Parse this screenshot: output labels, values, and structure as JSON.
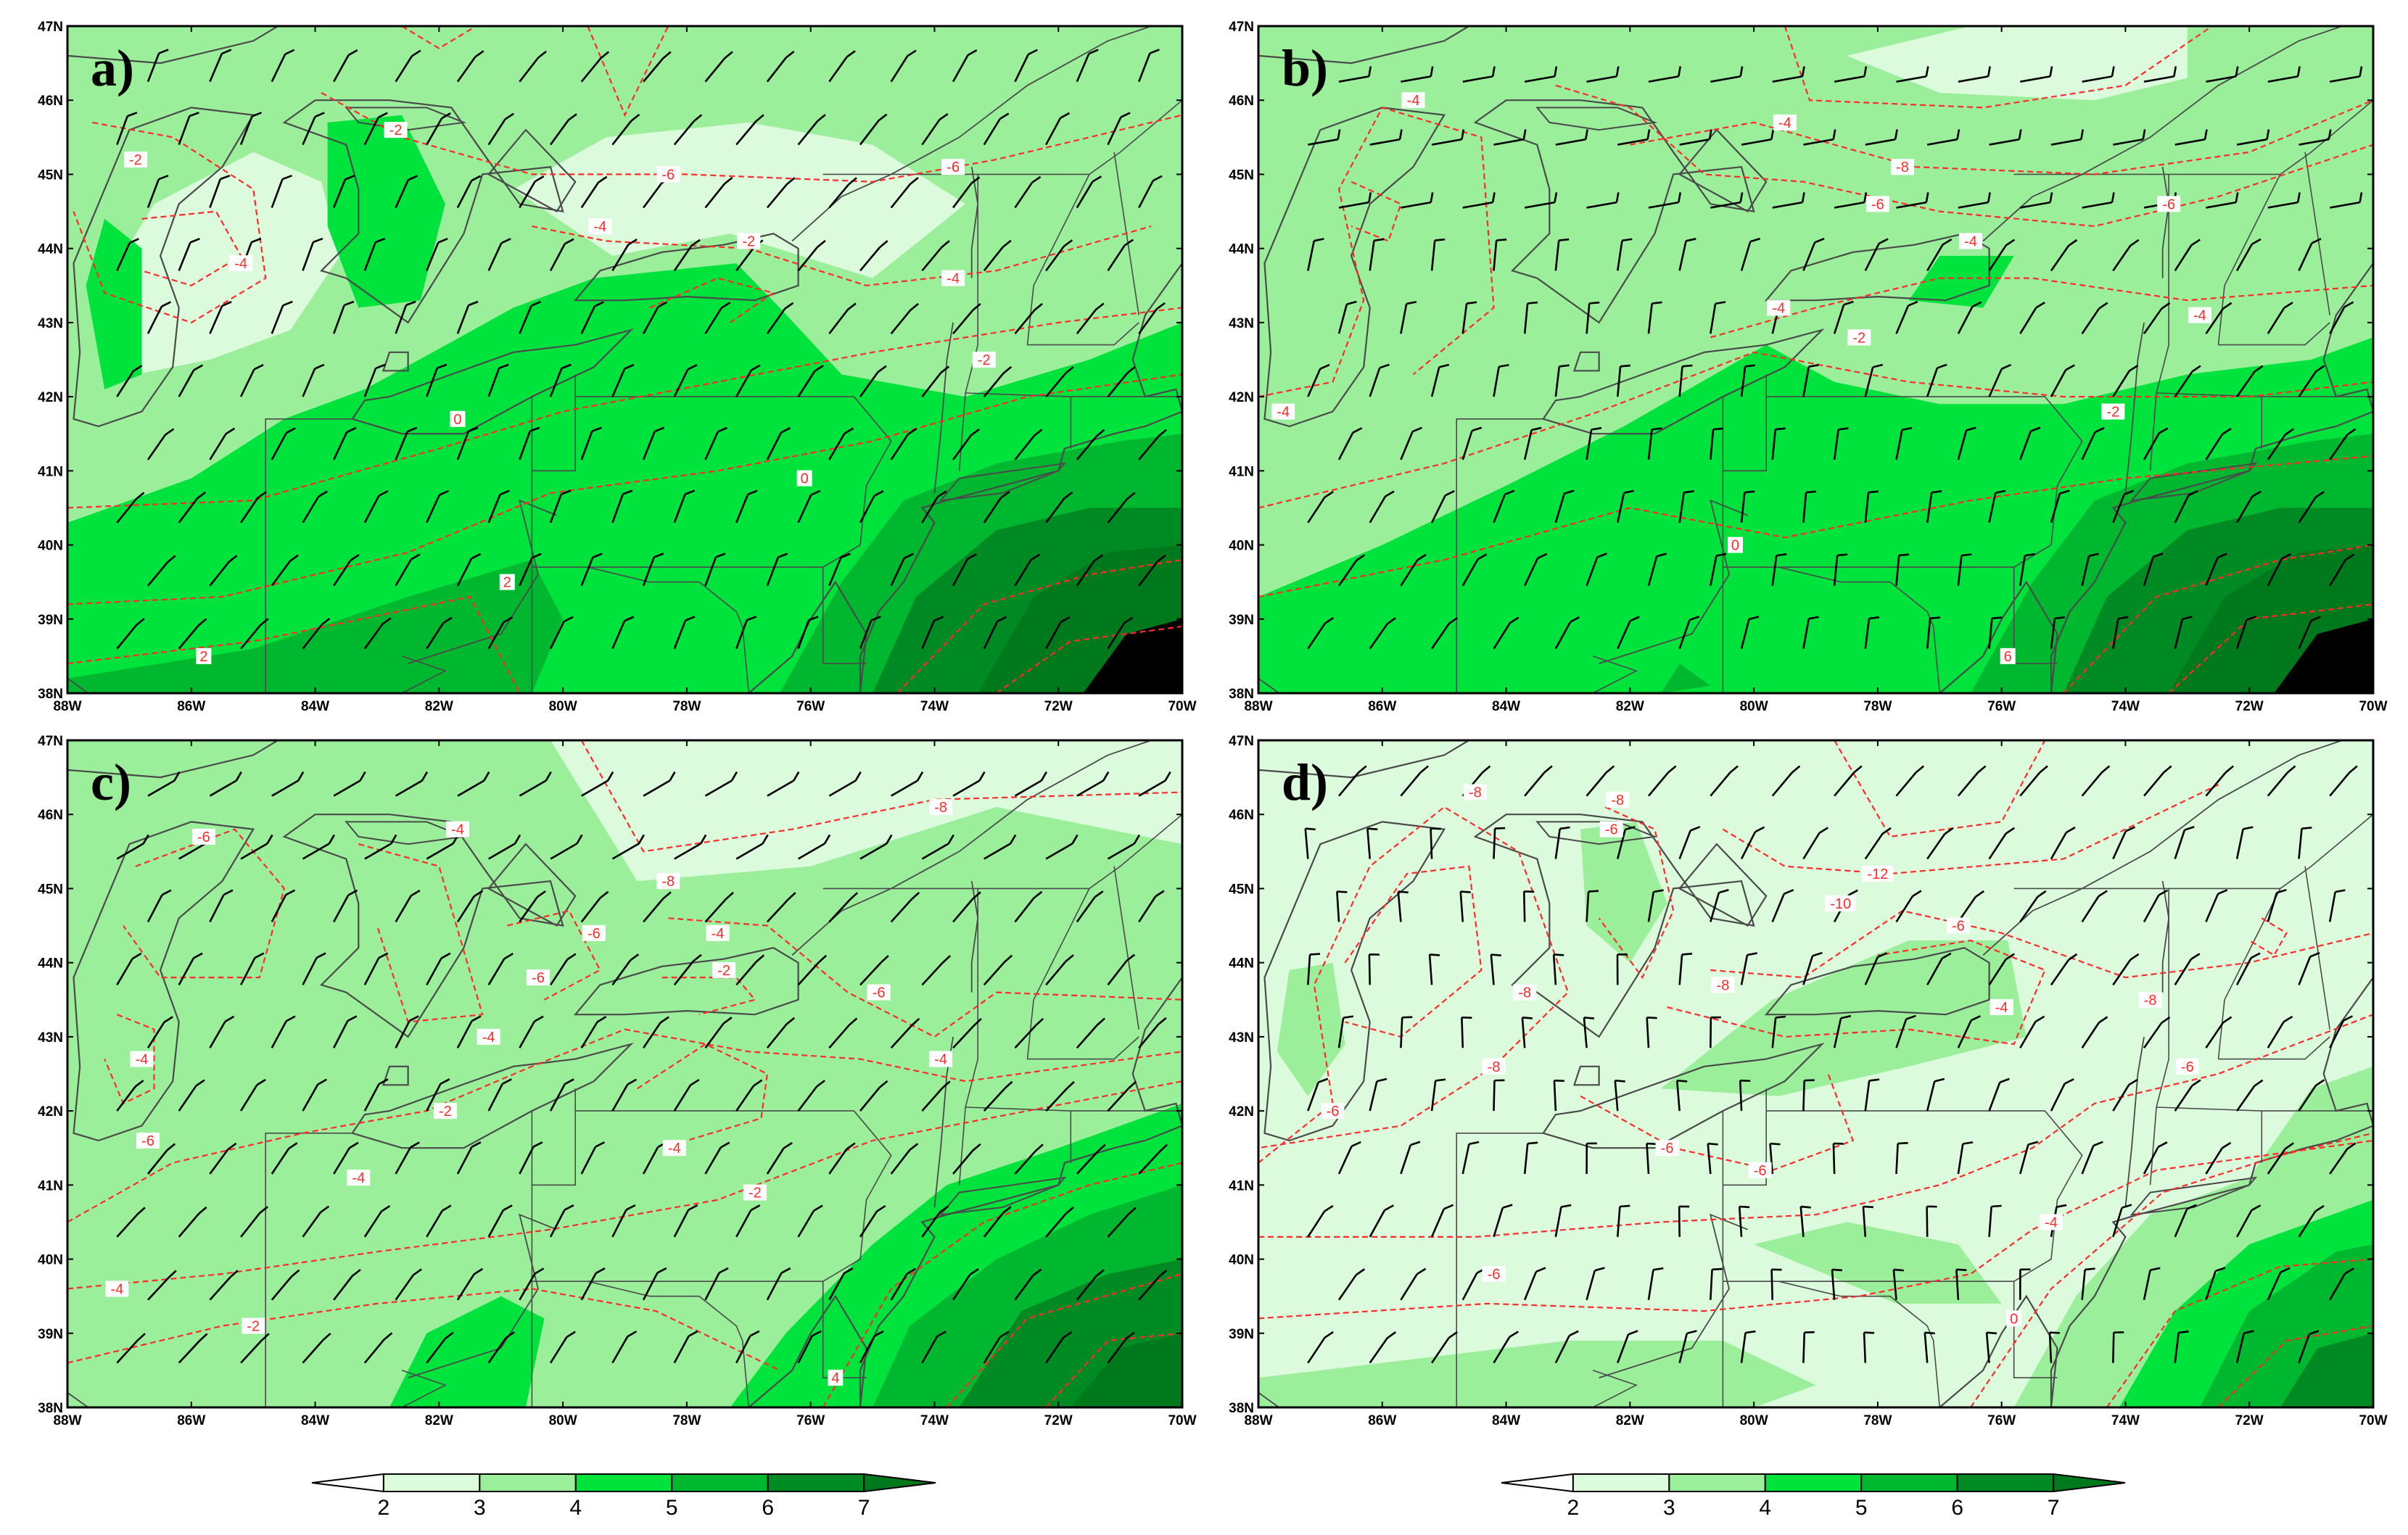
{
  "lon_ticks": [
    "88W",
    "86W",
    "84W",
    "82W",
    "80W",
    "78W",
    "76W",
    "74W",
    "72W",
    "70W"
  ],
  "lat_ticks": [
    "38N",
    "39N",
    "40N",
    "41N",
    "42N",
    "43N",
    "44N",
    "45N",
    "46N",
    "47N"
  ],
  "colorbar": {
    "levels": [
      "2",
      "3",
      "4",
      "5",
      "6",
      "7"
    ],
    "colors": [
      "#ffffff",
      "#dcfadc",
      "#9bef9b",
      "#00e23c",
      "#00b82f",
      "#008a23",
      "#00791c"
    ]
  },
  "colors": {
    "contour": "#ff2a2a",
    "barb": "#000000",
    "outline": "#555555"
  },
  "panels": [
    {
      "label": "a)",
      "contour_labels": [
        {
          "t": "-2",
          "lon": -86.9,
          "lat": 45.2
        },
        {
          "t": "-2",
          "lon": -82.7,
          "lat": 45.6
        },
        {
          "t": "-4",
          "lon": -85.2,
          "lat": 43.8
        },
        {
          "t": "-6",
          "lon": -78.3,
          "lat": 45.0
        },
        {
          "t": "-4",
          "lon": -79.4,
          "lat": 44.3
        },
        {
          "t": "-2",
          "lon": -77.0,
          "lat": 44.1
        },
        {
          "t": "-6",
          "lon": -73.7,
          "lat": 45.1
        },
        {
          "t": "-4",
          "lon": -73.7,
          "lat": 43.6
        },
        {
          "t": "-2",
          "lon": -73.2,
          "lat": 42.5
        },
        {
          "t": "0",
          "lon": -81.7,
          "lat": 41.7
        },
        {
          "t": "0",
          "lon": -76.1,
          "lat": 40.9
        },
        {
          "t": "2",
          "lon": -80.9,
          "lat": 39.5
        },
        {
          "t": "2",
          "lon": -85.8,
          "lat": 38.5
        }
      ]
    },
    {
      "label": "b)",
      "contour_labels": [
        {
          "t": "-4",
          "lon": -85.5,
          "lat": 46.0
        },
        {
          "t": "-4",
          "lon": -79.5,
          "lat": 45.7
        },
        {
          "t": "-6",
          "lon": -78.0,
          "lat": 44.6
        },
        {
          "t": "-8",
          "lon": -77.6,
          "lat": 45.1
        },
        {
          "t": "-4",
          "lon": -76.5,
          "lat": 44.1
        },
        {
          "t": "-6",
          "lon": -73.3,
          "lat": 44.6
        },
        {
          "t": "-4",
          "lon": -72.8,
          "lat": 43.1
        },
        {
          "t": "-4",
          "lon": -79.6,
          "lat": 43.2
        },
        {
          "t": "-2",
          "lon": -78.3,
          "lat": 42.8
        },
        {
          "t": "-4",
          "lon": -87.6,
          "lat": 41.8
        },
        {
          "t": "-2",
          "lon": -74.2,
          "lat": 41.8
        },
        {
          "t": "0",
          "lon": -80.3,
          "lat": 40.0
        },
        {
          "t": "6",
          "lon": -75.9,
          "lat": 38.5
        }
      ]
    },
    {
      "label": "c)",
      "contour_labels": [
        {
          "t": "-6",
          "lon": -85.8,
          "lat": 45.7
        },
        {
          "t": "-4",
          "lon": -81.7,
          "lat": 45.8
        },
        {
          "t": "-8",
          "lon": -78.3,
          "lat": 45.1
        },
        {
          "t": "-8",
          "lon": -73.9,
          "lat": 46.1
        },
        {
          "t": "-6",
          "lon": -79.5,
          "lat": 44.4
        },
        {
          "t": "-6",
          "lon": -80.4,
          "lat": 43.8
        },
        {
          "t": "-4",
          "lon": -77.5,
          "lat": 44.4
        },
        {
          "t": "-2",
          "lon": -77.4,
          "lat": 43.9
        },
        {
          "t": "-6",
          "lon": -74.9,
          "lat": 43.6
        },
        {
          "t": "-4",
          "lon": -81.2,
          "lat": 43.0
        },
        {
          "t": "-4",
          "lon": -73.9,
          "lat": 42.7
        },
        {
          "t": "-4",
          "lon": -86.8,
          "lat": 42.7
        },
        {
          "t": "-2",
          "lon": -81.9,
          "lat": 42.0
        },
        {
          "t": "-4",
          "lon": -78.2,
          "lat": 41.5
        },
        {
          "t": "-6",
          "lon": -86.7,
          "lat": 41.6
        },
        {
          "t": "-4",
          "lon": -83.3,
          "lat": 41.1
        },
        {
          "t": "-2",
          "lon": -76.9,
          "lat": 40.9
        },
        {
          "t": "-4",
          "lon": -87.2,
          "lat": 39.6
        },
        {
          "t": "-2",
          "lon": -85.0,
          "lat": 39.1
        },
        {
          "t": "4",
          "lon": -75.6,
          "lat": 38.4
        }
      ]
    },
    {
      "label": "d)",
      "contour_labels": [
        {
          "t": "-8",
          "lon": -84.5,
          "lat": 46.3
        },
        {
          "t": "-8",
          "lon": -82.2,
          "lat": 46.2
        },
        {
          "t": "-6",
          "lon": -82.3,
          "lat": 45.8
        },
        {
          "t": "-8",
          "lon": -83.7,
          "lat": 43.6
        },
        {
          "t": "-12",
          "lon": -78.0,
          "lat": 45.2
        },
        {
          "t": "-10",
          "lon": -78.6,
          "lat": 44.8
        },
        {
          "t": "-8",
          "lon": -80.5,
          "lat": 43.7
        },
        {
          "t": "-6",
          "lon": -76.7,
          "lat": 44.5
        },
        {
          "t": "-4",
          "lon": -76.0,
          "lat": 43.4
        },
        {
          "t": "-8",
          "lon": -73.6,
          "lat": 43.5
        },
        {
          "t": "-6",
          "lon": -73.0,
          "lat": 42.6
        },
        {
          "t": "-8",
          "lon": -84.2,
          "lat": 42.6
        },
        {
          "t": "-6",
          "lon": -86.8,
          "lat": 42.0
        },
        {
          "t": "-6",
          "lon": -81.4,
          "lat": 41.5
        },
        {
          "t": "-6",
          "lon": -79.9,
          "lat": 41.2
        },
        {
          "t": "-6",
          "lon": -84.2,
          "lat": 39.8
        },
        {
          "t": "-4",
          "lon": -75.2,
          "lat": 40.5
        },
        {
          "t": "0",
          "lon": -75.8,
          "lat": 39.2
        }
      ]
    }
  ]
}
